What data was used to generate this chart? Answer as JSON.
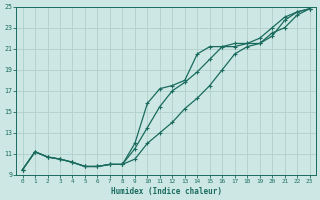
{
  "xlabel": "Humidex (Indice chaleur)",
  "xlim": [
    -0.5,
    23.5
  ],
  "ylim": [
    9,
    25
  ],
  "xticks": [
    0,
    1,
    2,
    3,
    4,
    5,
    6,
    7,
    8,
    9,
    10,
    11,
    12,
    13,
    14,
    15,
    16,
    17,
    18,
    19,
    20,
    21,
    22,
    23
  ],
  "yticks": [
    9,
    11,
    13,
    15,
    17,
    19,
    21,
    23,
    25
  ],
  "bg_color": "#cde8e4",
  "grid_color": "#b0d0cc",
  "line_color": "#1a6b5e",
  "line1_x": [
    0,
    1,
    2,
    3,
    4,
    5,
    6,
    7,
    8,
    9,
    10,
    11,
    12,
    13,
    14,
    15,
    16,
    17,
    18,
    19,
    20,
    21,
    22,
    23
  ],
  "line1_y": [
    9.5,
    11.2,
    10.7,
    10.5,
    10.2,
    9.8,
    9.8,
    10.0,
    10.0,
    10.5,
    12.0,
    13.0,
    14.0,
    15.3,
    16.3,
    17.5,
    19.0,
    20.5,
    21.2,
    21.5,
    22.2,
    23.7,
    24.5,
    24.8
  ],
  "line2_x": [
    0,
    1,
    2,
    3,
    4,
    5,
    6,
    7,
    8,
    9,
    10,
    11,
    12,
    13,
    14,
    15,
    16,
    17,
    18,
    19,
    20,
    21,
    22,
    23
  ],
  "line2_y": [
    9.5,
    11.2,
    10.7,
    10.5,
    10.2,
    9.8,
    9.8,
    10.0,
    10.0,
    11.5,
    13.5,
    15.5,
    17.0,
    17.8,
    18.8,
    20.0,
    21.2,
    21.5,
    21.5,
    21.5,
    22.5,
    23.0,
    24.2,
    24.8
  ],
  "line3_x": [
    0,
    1,
    2,
    3,
    4,
    5,
    6,
    7,
    8,
    9,
    10,
    11,
    12,
    13,
    14,
    15,
    16,
    17,
    18,
    19,
    20,
    21,
    22,
    23
  ],
  "line3_y": [
    9.5,
    11.2,
    10.7,
    10.5,
    10.2,
    9.8,
    9.8,
    10.0,
    10.0,
    12.0,
    15.8,
    17.2,
    17.5,
    18.0,
    20.5,
    21.2,
    21.2,
    21.2,
    21.5,
    22.0,
    23.0,
    24.0,
    24.5,
    24.8
  ]
}
